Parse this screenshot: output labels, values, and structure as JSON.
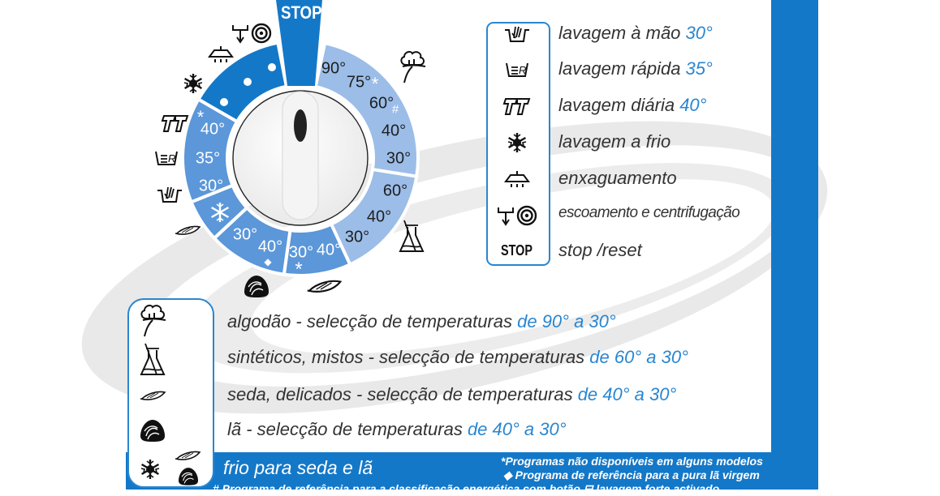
{
  "colors": {
    "dark_blue": "#1478c8",
    "medium_blue": "#5b97d9",
    "light_blue": "#9bbde8",
    "accent_text": "#2a86d0"
  },
  "dial": {
    "stop_label": "STOP",
    "cotton_temps": [
      "90°",
      "75°",
      "60°",
      "40°",
      "30°"
    ],
    "cotton_marks": {
      "t75": "*",
      "t60": "#"
    },
    "synthetic_temps": [
      "60°",
      "40°",
      "30°"
    ],
    "silk_temps": [
      "30°",
      "40°"
    ],
    "silk_mark": "*",
    "wool_temps": [
      "30°",
      "40°"
    ],
    "wool_mark": "◆",
    "daily_mark": "*",
    "special_temps": [
      "40°",
      "35°",
      "30°"
    ],
    "icons": [
      "drain-spin",
      "rinse",
      "snowflake",
      "daily-wash",
      "rapid-wash",
      "hand-wash",
      "feather",
      "wool",
      "feather",
      "cotton",
      "flask"
    ]
  },
  "programs": [
    {
      "icon": "hand-wash",
      "label": "lavagem à mão ",
      "temp": "30°"
    },
    {
      "icon": "rapid-wash",
      "label": "lavagem rápida ",
      "temp": "35°"
    },
    {
      "icon": "daily-wash",
      "label": "lavagem diária ",
      "temp": "40°"
    },
    {
      "icon": "snowflake",
      "label": "lavagem a frio",
      "temp": ""
    },
    {
      "icon": "rinse",
      "label": "enxaguamento",
      "temp": ""
    },
    {
      "icon": "drain-spin",
      "label": "escoamento e centrifugação",
      "temp": ""
    },
    {
      "icon": "stop",
      "icon_text": "STOP",
      "label": "stop /reset",
      "temp": ""
    }
  ],
  "fabrics": [
    {
      "icon": "cotton",
      "label": "algodão - selecção de temperaturas ",
      "range": "de 90° a 30°"
    },
    {
      "icon": "flask",
      "label": "sintéticos, mistos - selecção de temperaturas ",
      "range": "de 60° a 30°"
    },
    {
      "icon": "feather",
      "label": "seda, delicados - selecção de temperaturas ",
      "range": "de 40° a 30°"
    },
    {
      "icon": "wool",
      "label": "lã - selecção de temperaturas ",
      "range": "de 40° a 30°"
    }
  ],
  "footer": {
    "cold_label": "frio para seda e lã",
    "note_asterisk": "*Programas não disponíveis em alguns modelos",
    "note_diamond": "◆  Programa de referência para a pura lã virgem",
    "note_hash_before": "# Programa de referência para a classificação energética com botão",
    "note_hash_after": "lavagem forte activado"
  }
}
